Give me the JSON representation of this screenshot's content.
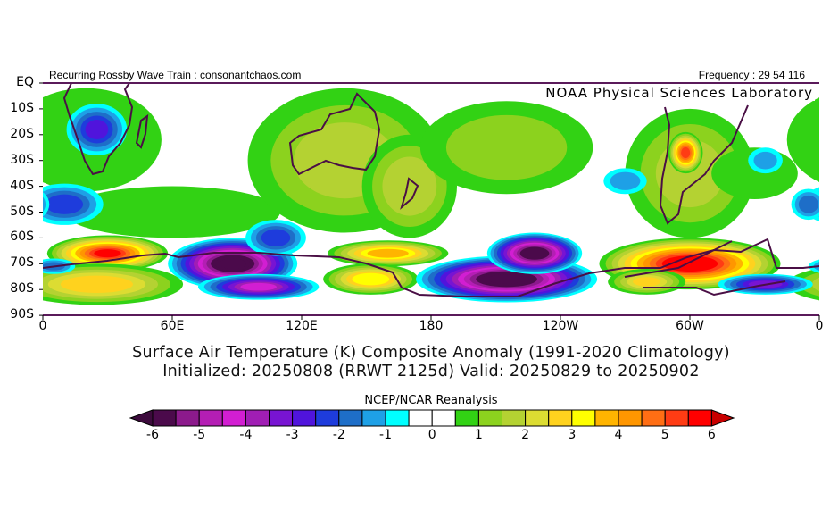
{
  "header": {
    "left_text": "Recurring Rossby Wave Train : consonantchaos.com",
    "right_text": "Frequency : 29 54 116",
    "lab_label": "NOAA Physical Sciences Laboratory"
  },
  "axes": {
    "lat_labels": [
      "EQ",
      "10S",
      "20S",
      "30S",
      "40S",
      "50S",
      "60S",
      "70S",
      "80S",
      "90S"
    ],
    "lon_labels": [
      "0",
      "60E",
      "120E",
      "180",
      "120W",
      "60W",
      "0"
    ]
  },
  "titles": {
    "line1": "Surface Air Temperature (K) Composite Anomaly (1991-2020 Climatology)",
    "line2": "Initialized: 20250808 (RRWT 2125d) Valid: 20250829 to 20250902"
  },
  "colorbar": {
    "title": "NCEP/NCAR Reanalysis",
    "tick_labels": [
      "-6",
      "-5",
      "-4",
      "-3",
      "-2",
      "-1",
      "0",
      "1",
      "2",
      "3",
      "4",
      "5",
      "6"
    ],
    "under_color": "#3c0a3c",
    "over_color": "#c80000",
    "colors": [
      "#4b0a4b",
      "#8c1a8c",
      "#b41eb4",
      "#d21ed2",
      "#a01eb4",
      "#7814d2",
      "#5014dc",
      "#1e3cdc",
      "#1e6ec8",
      "#1ea0e6",
      "#00ffff",
      "#ffffff",
      "#ffffff",
      "#32d214",
      "#8cd21e",
      "#b4d232",
      "#dcdc32",
      "#ffd21e",
      "#ffff00",
      "#ffb400",
      "#ff9600",
      "#ff6e14",
      "#ff3c14",
      "#ff0000"
    ]
  },
  "map_anomalies": [
    {
      "lon": 60,
      "lat": -50,
      "rlon": 50,
      "rlat": 10,
      "value": 0.9
    },
    {
      "lon": 20,
      "lat": -22,
      "rlon": 35,
      "rlat": 20,
      "value": 0.8
    },
    {
      "lon": 140,
      "lat": -30,
      "rlon": 45,
      "rlat": 28,
      "value": 1.6
    },
    {
      "lon": 170,
      "lat": -40,
      "rlon": 22,
      "rlat": 20,
      "value": 1.8
    },
    {
      "lon": 215,
      "lat": -25,
      "rlon": 40,
      "rlat": 18,
      "value": 1.2
    },
    {
      "lon": 300,
      "lat": -35,
      "rlon": 30,
      "rlat": 25,
      "value": 1.6
    },
    {
      "lon": 298,
      "lat": -27,
      "rlon": 8,
      "rlat": 8,
      "value": 5.2
    },
    {
      "lon": 330,
      "lat": -35,
      "rlon": 20,
      "rlat": 10,
      "value": 0.9
    },
    {
      "lon": 30,
      "lat": -66,
      "rlon": 28,
      "rlat": 7,
      "value": 5.5
    },
    {
      "lon": 25,
      "lat": -78,
      "rlon": 40,
      "rlat": 8,
      "value": 2.8
    },
    {
      "lon": 160,
      "lat": -66,
      "rlon": 28,
      "rlat": 5,
      "value": 3.8
    },
    {
      "lon": 152,
      "lat": -76,
      "rlon": 22,
      "rlat": 6,
      "value": 3.4
    },
    {
      "lon": 300,
      "lat": -70,
      "rlon": 42,
      "rlat": 10,
      "value": 6.2
    },
    {
      "lon": 280,
      "lat": -77,
      "rlon": 18,
      "rlat": 5,
      "value": 2.5
    },
    {
      "lon": 25,
      "lat": -18,
      "rlon": 14,
      "rlat": 10,
      "value": -2.6
    },
    {
      "lon": 10,
      "lat": -47,
      "rlon": 18,
      "rlat": 8,
      "value": -2.3
    },
    {
      "lon": 355,
      "lat": -47,
      "rlon": 8,
      "rlat": 6,
      "value": -1.8
    },
    {
      "lon": 270,
      "lat": -38,
      "rlon": 10,
      "rlat": 5,
      "value": -1.2
    },
    {
      "lon": 335,
      "lat": -30,
      "rlon": 8,
      "rlat": 5,
      "value": -1.1
    },
    {
      "lon": 88,
      "lat": -70,
      "rlon": 30,
      "rlat": 10,
      "value": -6.5
    },
    {
      "lon": 108,
      "lat": -60,
      "rlon": 14,
      "rlat": 7,
      "value": -2.3
    },
    {
      "lon": 100,
      "lat": -79,
      "rlon": 28,
      "rlat": 5,
      "value": -4.2
    },
    {
      "lon": 215,
      "lat": -76,
      "rlon": 42,
      "rlat": 9,
      "value": -6.5
    },
    {
      "lon": 228,
      "lat": -66,
      "rlon": 22,
      "rlat": 8,
      "value": -6.2
    },
    {
      "lon": 335,
      "lat": -78,
      "rlon": 22,
      "rlat": 4,
      "value": -3.2
    },
    {
      "lon": 5,
      "lat": -71,
      "rlon": 10,
      "rlat": 3,
      "value": -1.6
    }
  ]
}
